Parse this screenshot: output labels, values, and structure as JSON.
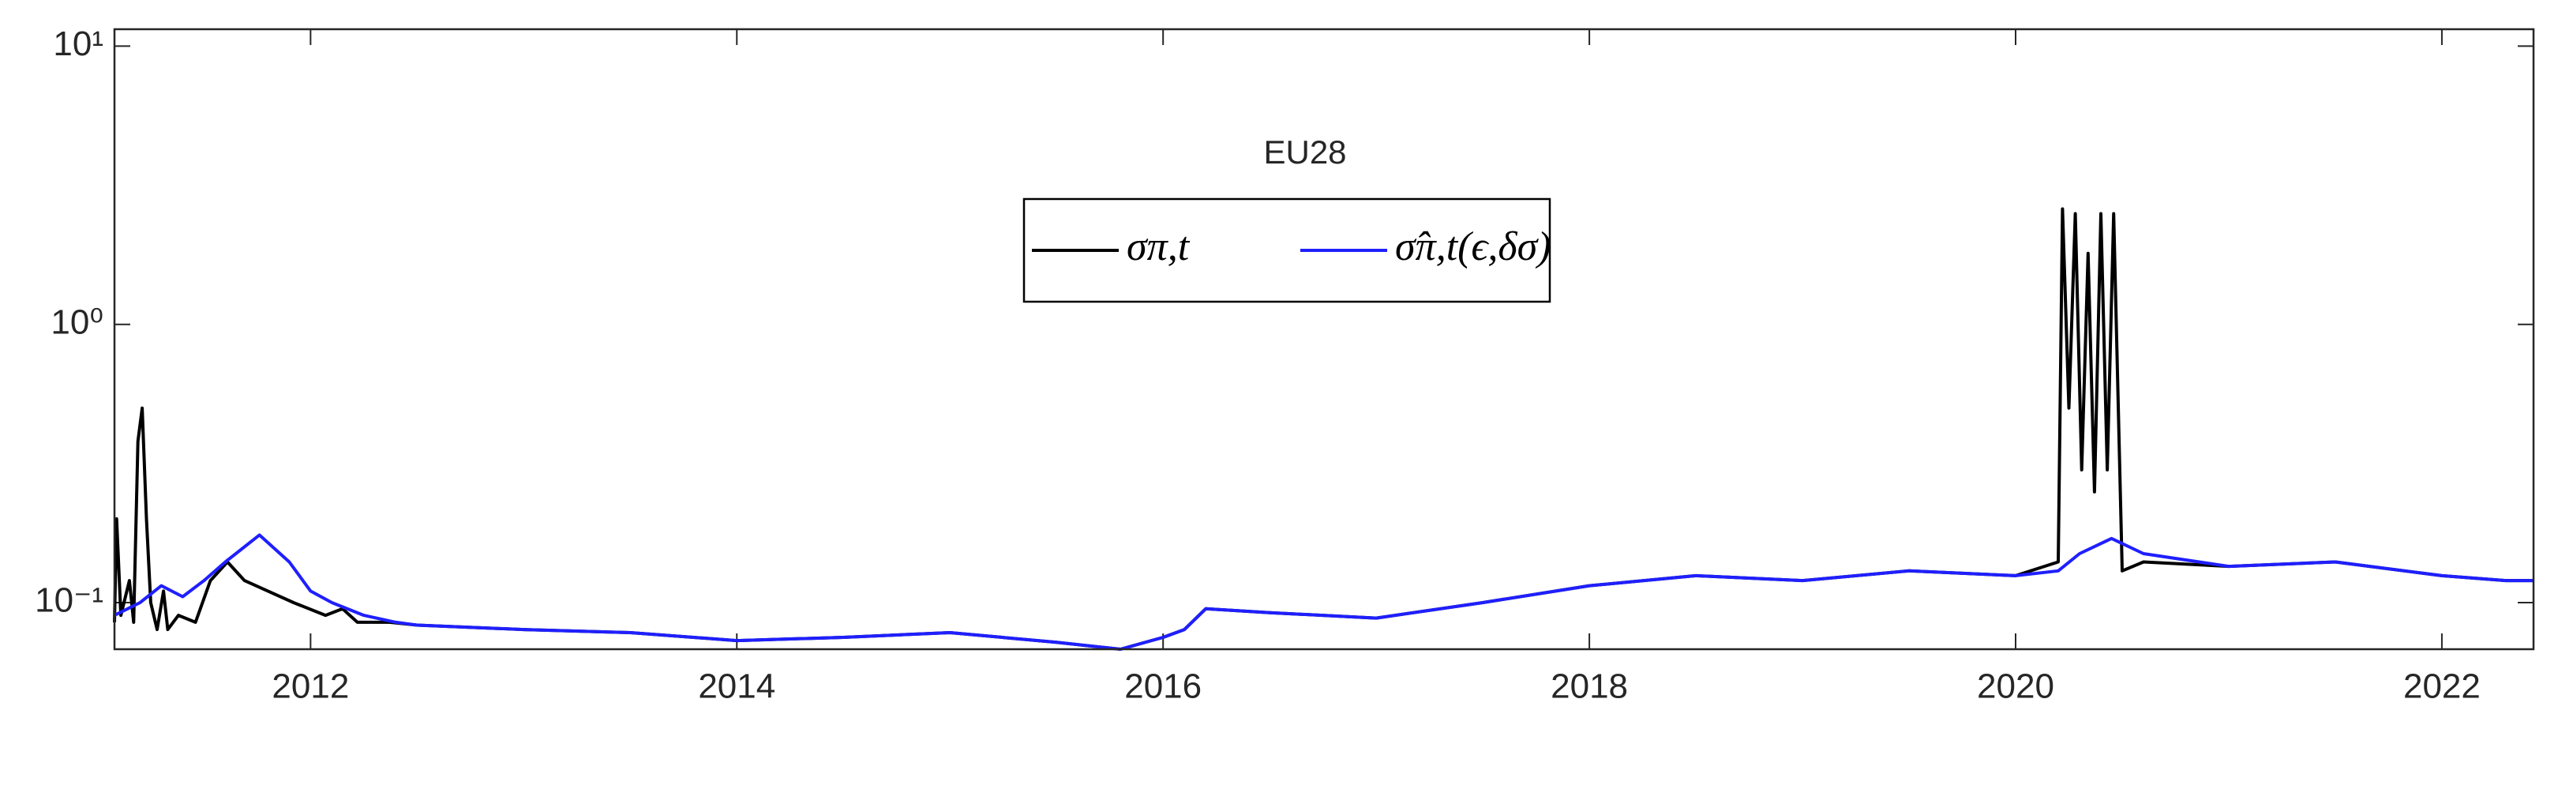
{
  "chart_data": {
    "type": "line",
    "title": "EU28",
    "log_y": true,
    "xlim": [
      2011.08,
      2022.43
    ],
    "xticks": [
      2012,
      2014,
      2016,
      2018,
      2020,
      2022
    ],
    "ylim": [
      0.068,
      11.5
    ],
    "yticks": [
      {
        "value": 0.1,
        "label": "10⁻¹"
      },
      {
        "value": 1,
        "label": "10⁰"
      },
      {
        "value": 10,
        "label": "10¹"
      }
    ],
    "legend": "top",
    "series": [
      {
        "name": "σπ,t",
        "color": "#000000",
        "x": [
          2011.08,
          2011.09,
          2011.11,
          2011.15,
          2011.17,
          2011.19,
          2011.21,
          2011.23,
          2011.25,
          2011.28,
          2011.31,
          2011.33,
          2011.38,
          2011.46,
          2011.53,
          2011.61,
          2011.69,
          2011.8,
          2011.92,
          2012.07,
          2012.15,
          2012.22,
          2012.37,
          2012.5,
          2013,
          2013.5,
          2014,
          2014.5,
          2015,
          2015.5,
          2015.8,
          2016,
          2016.1,
          2016.2,
          2016.5,
          2017,
          2017.5,
          2018,
          2018.5,
          2019,
          2019.5,
          2020,
          2020.2,
          2020.22,
          2020.25,
          2020.28,
          2020.31,
          2020.34,
          2020.37,
          2020.4,
          2020.43,
          2020.46,
          2020.5,
          2020.6,
          2021,
          2021.5,
          2022,
          2022.3,
          2022.43
        ],
        "values": [
          0.085,
          0.2,
          0.09,
          0.12,
          0.085,
          0.38,
          0.5,
          0.2,
          0.1,
          0.08,
          0.11,
          0.08,
          0.09,
          0.085,
          0.12,
          0.14,
          0.12,
          0.11,
          0.1,
          0.09,
          0.095,
          0.085,
          0.085,
          0.083,
          0.08,
          0.078,
          0.073,
          0.075,
          0.078,
          0.072,
          0.068,
          0.075,
          0.08,
          0.095,
          0.092,
          0.088,
          0.1,
          0.115,
          0.125,
          0.12,
          0.13,
          0.125,
          0.14,
          2.6,
          0.5,
          2.5,
          0.3,
          1.8,
          0.25,
          2.5,
          0.3,
          2.5,
          0.13,
          0.14,
          0.135,
          0.14,
          0.125,
          0.12,
          0.12
        ]
      },
      {
        "name": "σ̂π,t(ϵ,δσ)",
        "color": "#1f1fff",
        "x": [
          2011.08,
          2011.2,
          2011.3,
          2011.4,
          2011.5,
          2011.6,
          2011.76,
          2011.9,
          2012,
          2012.1,
          2012.25,
          2012.4,
          2012.5,
          2013,
          2013.5,
          2014,
          2014.5,
          2015,
          2015.5,
          2015.8,
          2016,
          2016.1,
          2016.2,
          2016.5,
          2017,
          2017.5,
          2018,
          2018.5,
          2019,
          2019.5,
          2020,
          2020.2,
          2020.3,
          2020.45,
          2020.6,
          2021,
          2021.5,
          2022,
          2022.3,
          2022.43
        ],
        "values": [
          0.09,
          0.1,
          0.115,
          0.105,
          0.12,
          0.14,
          0.175,
          0.14,
          0.11,
          0.1,
          0.09,
          0.085,
          0.083,
          0.08,
          0.078,
          0.073,
          0.075,
          0.078,
          0.072,
          0.068,
          0.075,
          0.08,
          0.095,
          0.092,
          0.088,
          0.1,
          0.115,
          0.125,
          0.12,
          0.13,
          0.125,
          0.13,
          0.15,
          0.17,
          0.15,
          0.135,
          0.14,
          0.125,
          0.12,
          0.12
        ]
      }
    ]
  }
}
